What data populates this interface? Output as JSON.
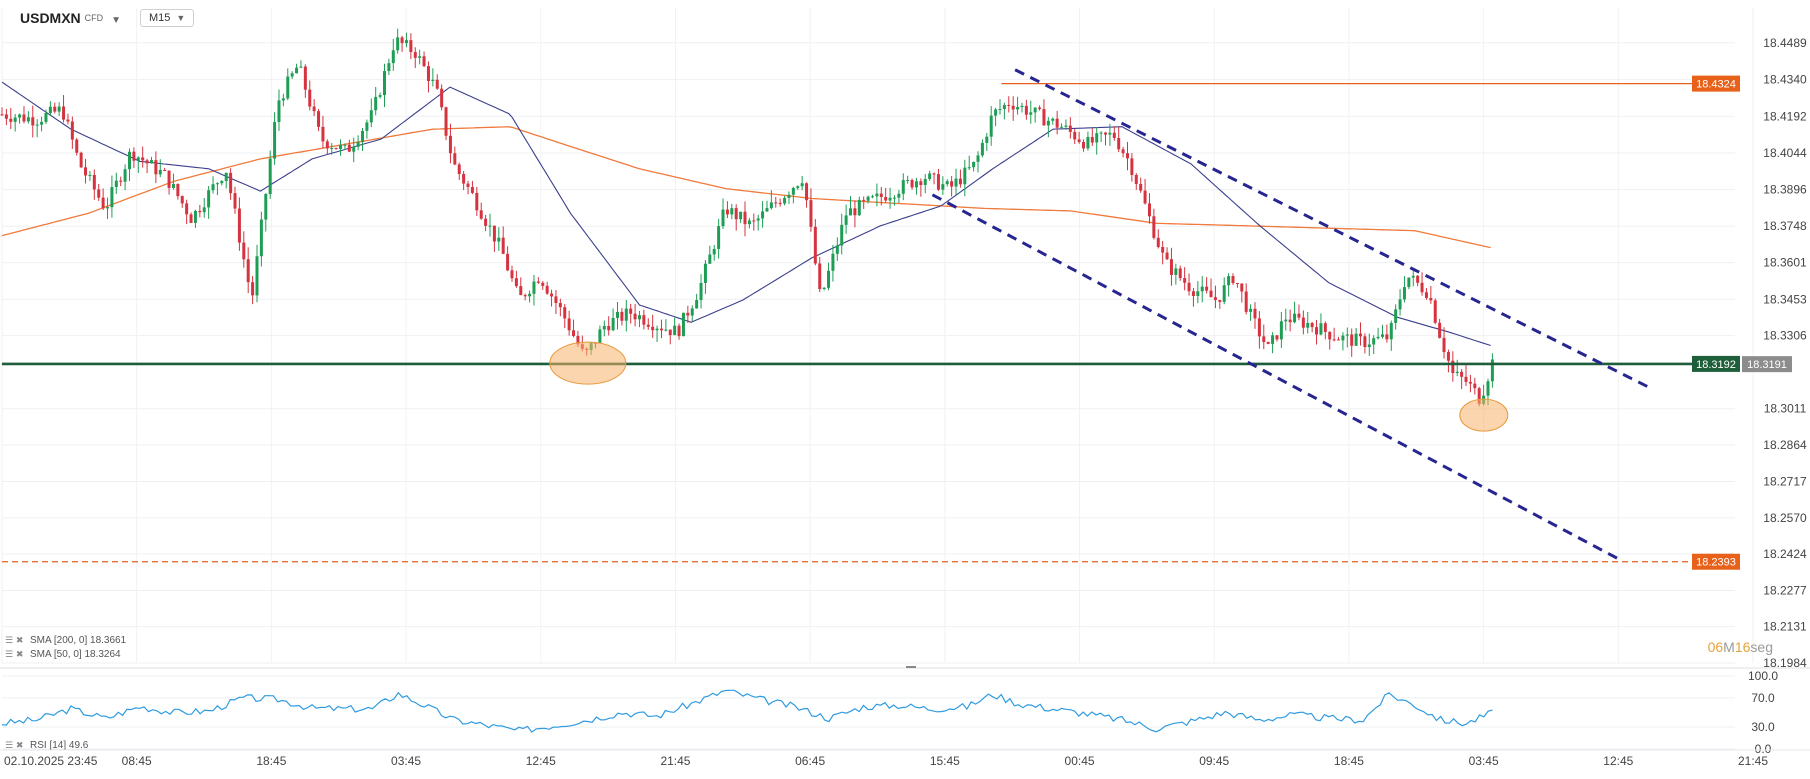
{
  "header": {
    "symbol": "USDMXN",
    "symbol_type": "CFD",
    "timeframe": "M15"
  },
  "countdown": {
    "minutes": "06",
    "min_unit": "M",
    "seconds": "16",
    "sec_unit": "seg"
  },
  "chart_data": [
    {
      "type": "candlestick",
      "title": "USDMXN CFD M15",
      "price_axis_ticks": [
        "18.4489",
        "18.4340",
        "18.4192",
        "18.4044",
        "18.3896",
        "18.3748",
        "18.3601",
        "18.3453",
        "18.3306",
        "18.3011",
        "18.2864",
        "18.2717",
        "18.2570",
        "18.2424",
        "18.2277",
        "18.2131",
        "18.1984"
      ],
      "time_axis_labels": [
        "02.10.2025  23:45",
        "08:45",
        "18:45",
        "03:45",
        "12:45",
        "21:45",
        "06:45",
        "15:45",
        "00:45",
        "09:45",
        "18:45",
        "03:45",
        "12:45",
        "21:45"
      ],
      "ylim": [
        18.1984,
        18.4589
      ],
      "price_levels": [
        {
          "name": "resistance",
          "value": 18.4324,
          "label": "18.4324",
          "color": "#e8611b",
          "style": "solid"
        },
        {
          "name": "support",
          "value": 18.3192,
          "label": "18.3192",
          "color": "#1f5e3b",
          "style": "solid"
        },
        {
          "name": "target",
          "value": 18.2393,
          "label": "18.2393",
          "color": "#e8611b",
          "style": "dashed"
        }
      ],
      "last_price": {
        "value": 18.3191,
        "label": "18.3191",
        "color": "#8c8c8c"
      },
      "indicators": [
        {
          "name": "SMA [200, 0]",
          "value": "18.3661",
          "color": "#f07a3c"
        },
        {
          "name": "SMA [50, 0]",
          "value": "18.3264",
          "color": "#3b3f8c"
        }
      ],
      "trend_channel": {
        "color": "#27258f",
        "lines": [
          {
            "from": {
              "bar": 0.588,
              "price": 18.438
            },
            "to": {
              "bar": 0.958,
              "price": 18.309
            }
          },
          {
            "from": {
              "bar": 0.54,
              "price": 18.3875
            },
            "to": {
              "bar": 0.938,
              "price": 18.2405
            }
          }
        ]
      },
      "highlights": [
        {
          "bar": 0.34,
          "price": 18.3195,
          "color": "#f5b36b"
        },
        {
          "bar": 0.86,
          "price": 18.2985,
          "color": "#f5b36b"
        }
      ],
      "close_anchors": [
        {
          "bar": 0.0,
          "price": 18.42
        },
        {
          "bar": 0.02,
          "price": 18.418
        },
        {
          "bar": 0.035,
          "price": 18.422
        },
        {
          "bar": 0.045,
          "price": 18.4
        },
        {
          "bar": 0.06,
          "price": 18.382
        },
        {
          "bar": 0.075,
          "price": 18.405
        },
        {
          "bar": 0.095,
          "price": 18.395
        },
        {
          "bar": 0.11,
          "price": 18.378
        },
        {
          "bar": 0.13,
          "price": 18.398
        },
        {
          "bar": 0.145,
          "price": 18.345
        },
        {
          "bar": 0.16,
          "price": 18.425
        },
        {
          "bar": 0.172,
          "price": 18.44
        },
        {
          "bar": 0.185,
          "price": 18.41
        },
        {
          "bar": 0.2,
          "price": 18.405
        },
        {
          "bar": 0.215,
          "price": 18.42
        },
        {
          "bar": 0.228,
          "price": 18.45
        },
        {
          "bar": 0.24,
          "price": 18.445
        },
        {
          "bar": 0.252,
          "price": 18.43
        },
        {
          "bar": 0.262,
          "price": 18.4
        },
        {
          "bar": 0.275,
          "price": 18.385
        },
        {
          "bar": 0.29,
          "price": 18.365
        },
        {
          "bar": 0.3,
          "price": 18.345
        },
        {
          "bar": 0.312,
          "price": 18.355
        },
        {
          "bar": 0.325,
          "price": 18.34
        },
        {
          "bar": 0.338,
          "price": 18.322
        },
        {
          "bar": 0.35,
          "price": 18.335
        },
        {
          "bar": 0.365,
          "price": 18.34
        },
        {
          "bar": 0.38,
          "price": 18.335
        },
        {
          "bar": 0.392,
          "price": 18.332
        },
        {
          "bar": 0.405,
          "price": 18.35
        },
        {
          "bar": 0.42,
          "price": 18.382
        },
        {
          "bar": 0.435,
          "price": 18.375
        },
        {
          "bar": 0.45,
          "price": 18.385
        },
        {
          "bar": 0.465,
          "price": 18.395
        },
        {
          "bar": 0.475,
          "price": 18.345
        },
        {
          "bar": 0.49,
          "price": 18.38
        },
        {
          "bar": 0.505,
          "price": 18.385
        },
        {
          "bar": 0.52,
          "price": 18.39
        },
        {
          "bar": 0.535,
          "price": 18.395
        },
        {
          "bar": 0.55,
          "price": 18.39
        },
        {
          "bar": 0.565,
          "price": 18.4
        },
        {
          "bar": 0.575,
          "price": 18.42
        },
        {
          "bar": 0.585,
          "price": 18.425
        },
        {
          "bar": 0.6,
          "price": 18.42
        },
        {
          "bar": 0.615,
          "price": 18.415
        },
        {
          "bar": 0.63,
          "price": 18.408
        },
        {
          "bar": 0.645,
          "price": 18.412
        },
        {
          "bar": 0.655,
          "price": 18.4
        },
        {
          "bar": 0.665,
          "price": 18.38
        },
        {
          "bar": 0.675,
          "price": 18.36
        },
        {
          "bar": 0.69,
          "price": 18.35
        },
        {
          "bar": 0.705,
          "price": 18.345
        },
        {
          "bar": 0.715,
          "price": 18.355
        },
        {
          "bar": 0.725,
          "price": 18.338
        },
        {
          "bar": 0.735,
          "price": 18.325
        },
        {
          "bar": 0.745,
          "price": 18.338
        },
        {
          "bar": 0.76,
          "price": 18.335
        },
        {
          "bar": 0.775,
          "price": 18.33
        },
        {
          "bar": 0.79,
          "price": 18.328
        },
        {
          "bar": 0.805,
          "price": 18.33
        },
        {
          "bar": 0.815,
          "price": 18.355
        },
        {
          "bar": 0.828,
          "price": 18.348
        },
        {
          "bar": 0.835,
          "price": 18.33
        },
        {
          "bar": 0.842,
          "price": 18.315
        },
        {
          "bar": 0.85,
          "price": 18.312
        },
        {
          "bar": 0.858,
          "price": 18.305
        },
        {
          "bar": 0.865,
          "price": 18.32
        }
      ],
      "sma200_anchors": [
        {
          "bar": 0.0,
          "price": 18.371
        },
        {
          "bar": 0.05,
          "price": 18.38
        },
        {
          "bar": 0.1,
          "price": 18.393
        },
        {
          "bar": 0.15,
          "price": 18.402
        },
        {
          "bar": 0.2,
          "price": 18.408
        },
        {
          "bar": 0.25,
          "price": 18.414
        },
        {
          "bar": 0.295,
          "price": 18.415
        },
        {
          "bar": 0.33,
          "price": 18.407
        },
        {
          "bar": 0.37,
          "price": 18.398
        },
        {
          "bar": 0.42,
          "price": 18.39
        },
        {
          "bar": 0.47,
          "price": 18.386
        },
        {
          "bar": 0.52,
          "price": 18.384
        },
        {
          "bar": 0.57,
          "price": 18.382
        },
        {
          "bar": 0.62,
          "price": 18.381
        },
        {
          "bar": 0.67,
          "price": 18.376
        },
        {
          "bar": 0.72,
          "price": 18.375
        },
        {
          "bar": 0.77,
          "price": 18.374
        },
        {
          "bar": 0.82,
          "price": 18.373
        },
        {
          "bar": 0.865,
          "price": 18.366
        }
      ],
      "sma50_anchors": [
        {
          "bar": 0.0,
          "price": 18.433
        },
        {
          "bar": 0.04,
          "price": 18.414
        },
        {
          "bar": 0.08,
          "price": 18.401
        },
        {
          "bar": 0.12,
          "price": 18.398
        },
        {
          "bar": 0.15,
          "price": 18.389
        },
        {
          "bar": 0.18,
          "price": 18.402
        },
        {
          "bar": 0.22,
          "price": 18.41
        },
        {
          "bar": 0.26,
          "price": 18.431
        },
        {
          "bar": 0.295,
          "price": 18.42
        },
        {
          "bar": 0.33,
          "price": 18.38
        },
        {
          "bar": 0.37,
          "price": 18.343
        },
        {
          "bar": 0.4,
          "price": 18.336
        },
        {
          "bar": 0.43,
          "price": 18.345
        },
        {
          "bar": 0.47,
          "price": 18.362
        },
        {
          "bar": 0.51,
          "price": 18.375
        },
        {
          "bar": 0.545,
          "price": 18.383
        },
        {
          "bar": 0.575,
          "price": 18.398
        },
        {
          "bar": 0.61,
          "price": 18.414
        },
        {
          "bar": 0.65,
          "price": 18.415
        },
        {
          "bar": 0.69,
          "price": 18.4
        },
        {
          "bar": 0.73,
          "price": 18.375
        },
        {
          "bar": 0.77,
          "price": 18.352
        },
        {
          "bar": 0.81,
          "price": 18.338
        },
        {
          "bar": 0.84,
          "price": 18.332
        },
        {
          "bar": 0.865,
          "price": 18.3264
        }
      ]
    },
    {
      "type": "line",
      "title": "RSI [14]",
      "indicator": {
        "name": "RSI [14]",
        "value": "49.6",
        "color": "#2f9be0"
      },
      "y_ticks": [
        "100.0",
        "70.0",
        "30.0",
        "0.0"
      ],
      "ylim": [
        0,
        100
      ],
      "series_anchors": [
        {
          "bar": 0.0,
          "value": 35
        },
        {
          "bar": 0.02,
          "value": 40
        },
        {
          "bar": 0.04,
          "value": 55
        },
        {
          "bar": 0.06,
          "value": 42
        },
        {
          "bar": 0.08,
          "value": 58
        },
        {
          "bar": 0.1,
          "value": 50
        },
        {
          "bar": 0.12,
          "value": 52
        },
        {
          "bar": 0.14,
          "value": 70
        },
        {
          "bar": 0.16,
          "value": 68
        },
        {
          "bar": 0.18,
          "value": 56
        },
        {
          "bar": 0.2,
          "value": 55
        },
        {
          "bar": 0.215,
          "value": 55
        },
        {
          "bar": 0.23,
          "value": 76
        },
        {
          "bar": 0.245,
          "value": 60
        },
        {
          "bar": 0.262,
          "value": 40
        },
        {
          "bar": 0.28,
          "value": 33
        },
        {
          "bar": 0.3,
          "value": 25
        },
        {
          "bar": 0.32,
          "value": 32
        },
        {
          "bar": 0.34,
          "value": 40
        },
        {
          "bar": 0.36,
          "value": 50
        },
        {
          "bar": 0.38,
          "value": 45
        },
        {
          "bar": 0.4,
          "value": 62
        },
        {
          "bar": 0.42,
          "value": 80
        },
        {
          "bar": 0.44,
          "value": 68
        },
        {
          "bar": 0.46,
          "value": 58
        },
        {
          "bar": 0.48,
          "value": 42
        },
        {
          "bar": 0.5,
          "value": 58
        },
        {
          "bar": 0.52,
          "value": 60
        },
        {
          "bar": 0.54,
          "value": 55
        },
        {
          "bar": 0.56,
          "value": 58
        },
        {
          "bar": 0.575,
          "value": 75
        },
        {
          "bar": 0.59,
          "value": 62
        },
        {
          "bar": 0.61,
          "value": 55
        },
        {
          "bar": 0.63,
          "value": 48
        },
        {
          "bar": 0.65,
          "value": 40
        },
        {
          "bar": 0.67,
          "value": 28
        },
        {
          "bar": 0.69,
          "value": 38
        },
        {
          "bar": 0.71,
          "value": 50
        },
        {
          "bar": 0.73,
          "value": 40
        },
        {
          "bar": 0.75,
          "value": 47
        },
        {
          "bar": 0.77,
          "value": 42
        },
        {
          "bar": 0.79,
          "value": 40
        },
        {
          "bar": 0.805,
          "value": 75
        },
        {
          "bar": 0.82,
          "value": 60
        },
        {
          "bar": 0.835,
          "value": 40
        },
        {
          "bar": 0.85,
          "value": 35
        },
        {
          "bar": 0.865,
          "value": 50
        }
      ]
    }
  ]
}
